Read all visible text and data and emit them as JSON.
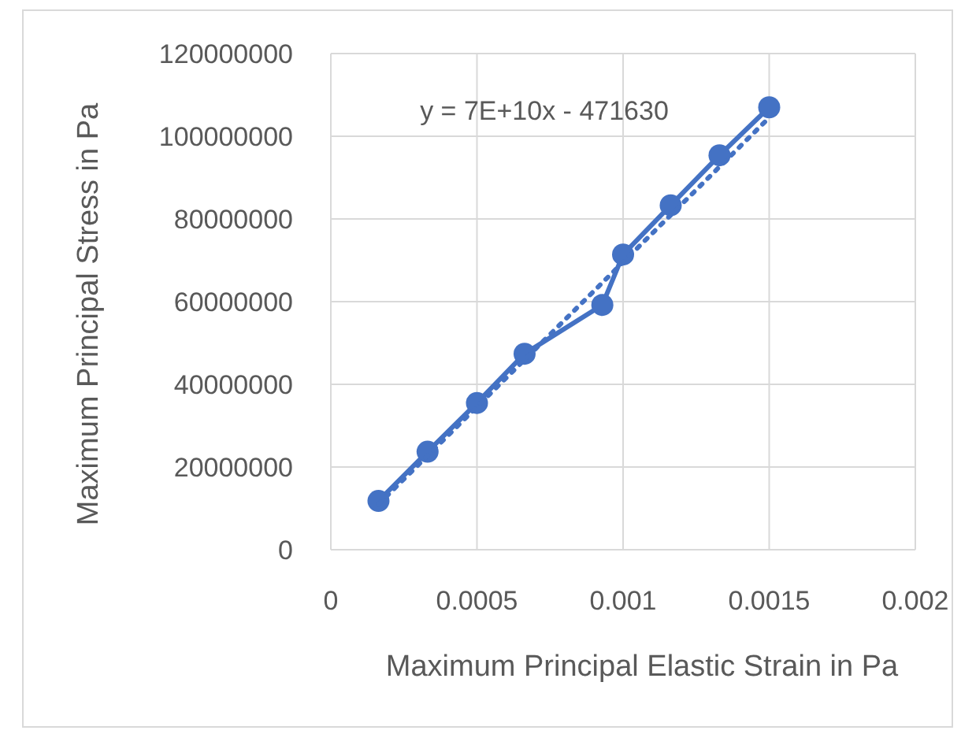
{
  "chart_data": {
    "type": "line",
    "xlabel": "Maximum Principal Elastic Strain  in Pa",
    "ylabel": "Maximum Principal Stress in Pa",
    "annotations": [
      "y = 7E+10x - 471630"
    ],
    "xlim": [
      0,
      0.002
    ],
    "xticks": [
      0,
      0.0005,
      0.001,
      0.0015,
      0.002
    ],
    "ylim": [
      0,
      120000000
    ],
    "yticks": [
      0,
      20000000,
      40000000,
      60000000,
      80000000,
      100000000,
      120000000
    ],
    "grid": true,
    "series": [
      {
        "color": "#4472c4",
        "x": [
          0.000163,
          0.000331,
          0.0005,
          0.000663,
          0.000929,
          0.001,
          0.001163,
          0.00133,
          0.0015
        ],
        "values": [
          11800000,
          23700000,
          35500000,
          47400000,
          59200000,
          71400000,
          83300000,
          95400000,
          107000000
        ],
        "marker": "circle",
        "line_style": "solid"
      },
      {
        "color": "#4472c4",
        "x": [
          0.000163,
          0.0015
        ],
        "values": [
          11000000,
          104500000
        ],
        "marker": "none",
        "line_style": "dotted"
      }
    ]
  }
}
